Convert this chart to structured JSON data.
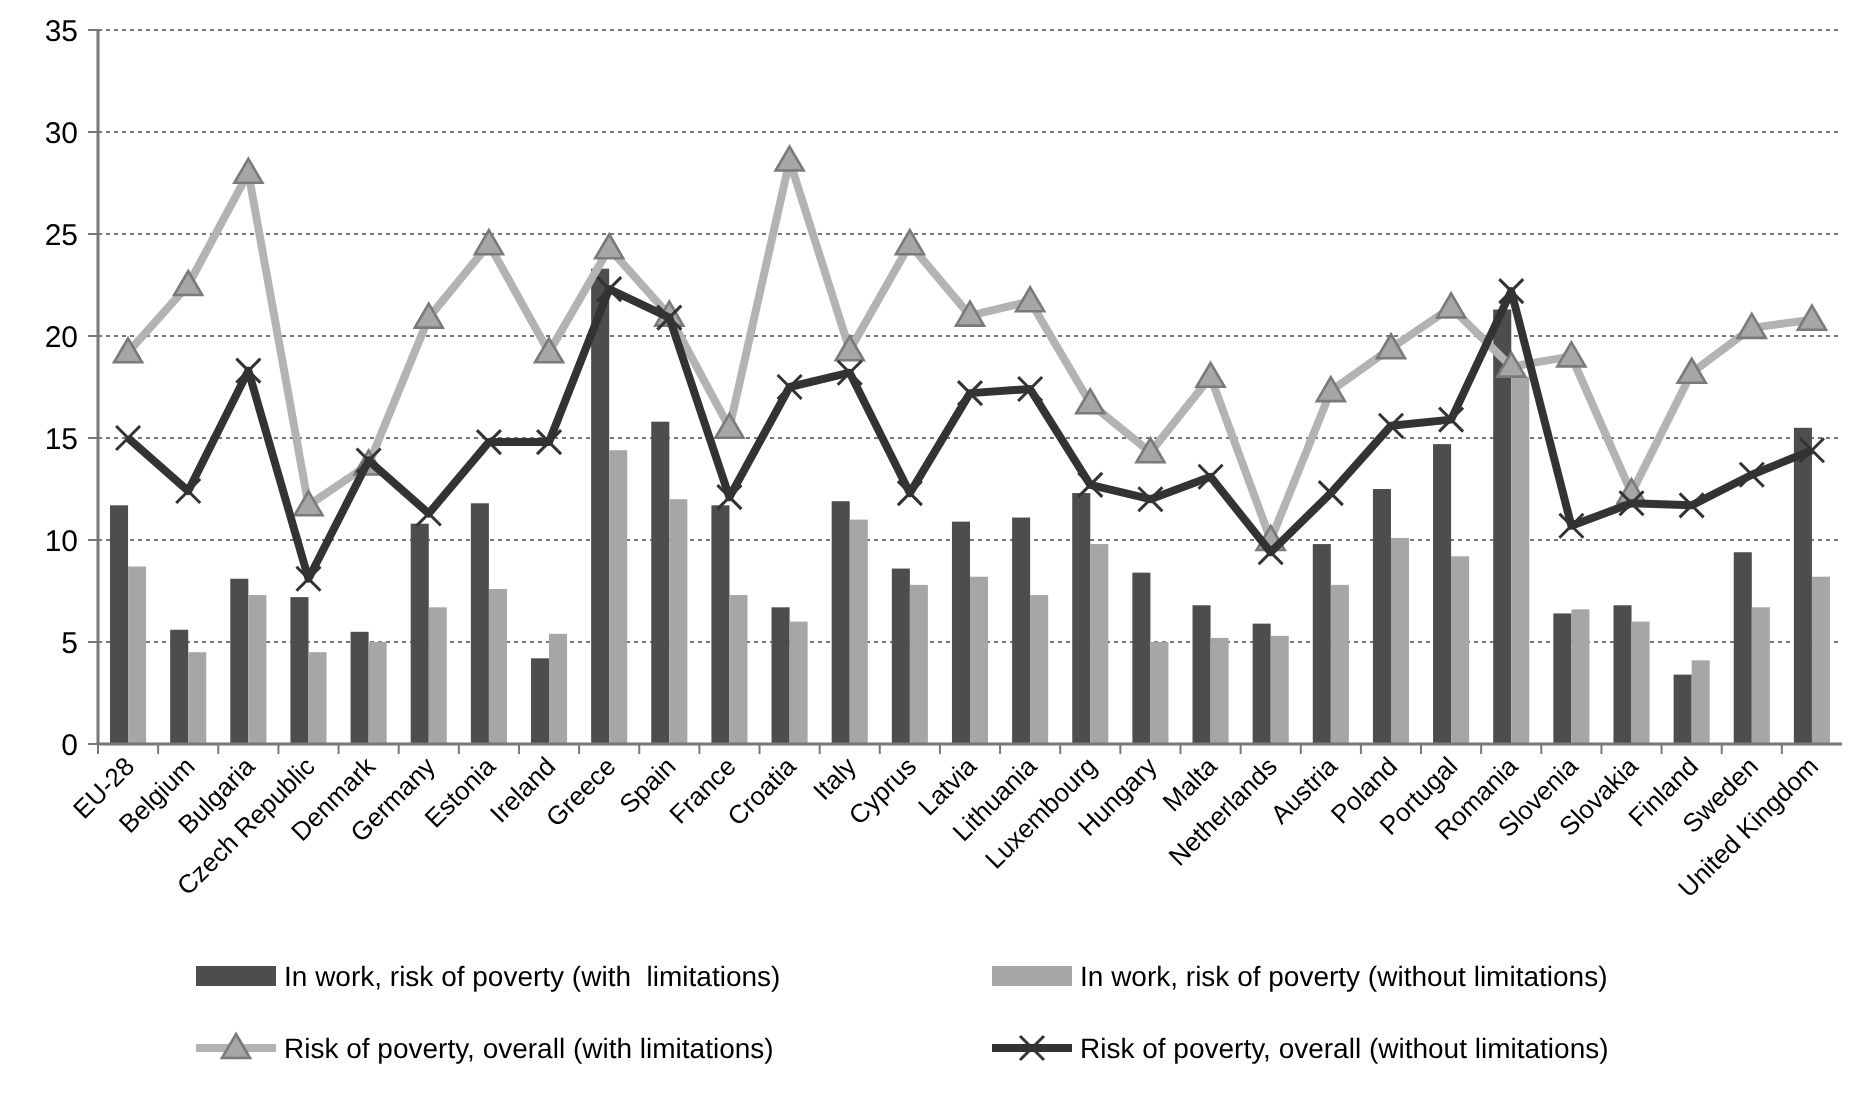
{
  "chart_data": {
    "type": "bar",
    "categories": [
      "EU-28",
      "Belgium",
      "Bulgaria",
      "Czech Republic",
      "Denmark",
      "Germany",
      "Estonia",
      "Ireland",
      "Greece",
      "Spain",
      "France",
      "Croatia",
      "Italy",
      "Cyprus",
      "Latvia",
      "Lithuania",
      "Luxembourg",
      "Hungary",
      "Malta",
      "Netherlands",
      "Austria",
      "Poland",
      "Portugal",
      "Romania",
      "Slovenia",
      "Slovakia",
      "Finland",
      "Sweden",
      "United Kingdom"
    ],
    "series": [
      {
        "name": "In work, risk of poverty (with  limitations)",
        "color": "#4d4d4d",
        "values": [
          11.7,
          5.6,
          8.1,
          7.2,
          5.5,
          10.8,
          11.8,
          4.2,
          23.3,
          15.8,
          11.7,
          6.7,
          11.9,
          8.6,
          10.9,
          11.1,
          12.3,
          8.4,
          6.8,
          5.9,
          9.8,
          12.5,
          14.7,
          21.3,
          6.4,
          6.8,
          3.4,
          9.4,
          15.5
        ]
      },
      {
        "name": "In work, risk of poverty (without limitations)",
        "color": "#a6a6a6",
        "values": [
          8.7,
          4.5,
          7.3,
          4.5,
          5.0,
          6.7,
          7.6,
          5.4,
          14.4,
          12.0,
          7.3,
          6.0,
          11.0,
          7.8,
          8.2,
          7.3,
          9.8,
          5.0,
          5.2,
          5.3,
          7.8,
          10.1,
          9.2,
          18.0,
          6.6,
          6.0,
          4.1,
          6.7,
          8.2
        ]
      },
      {
        "name": "Risk of poverty, overall (with limitations)",
        "type": "line",
        "marker": "triangle",
        "color": "#b3b3b3",
        "values": [
          19.2,
          22.5,
          28.0,
          11.7,
          13.7,
          20.9,
          24.5,
          19.2,
          24.3,
          21.0,
          15.5,
          28.6,
          19.3,
          24.5,
          21.0,
          21.7,
          16.7,
          14.3,
          18.0,
          10.0,
          17.3,
          19.4,
          21.4,
          18.5,
          19.0,
          12.3,
          18.2,
          20.4,
          20.8
        ]
      },
      {
        "name": "Risk of poverty, overall (without limitations)",
        "type": "line",
        "marker": "cross",
        "color": "#333333",
        "values": [
          15.0,
          12.4,
          18.3,
          8.1,
          13.9,
          11.3,
          14.8,
          14.8,
          22.3,
          20.9,
          12.1,
          17.5,
          18.2,
          12.3,
          17.2,
          17.4,
          12.7,
          12.0,
          13.1,
          9.4,
          12.3,
          15.6,
          15.9,
          22.2,
          10.7,
          11.8,
          11.7,
          13.2,
          14.4
        ]
      }
    ],
    "ylim": [
      0,
      35
    ],
    "yticks": [
      0,
      5,
      10,
      15,
      20,
      25,
      30,
      35
    ],
    "grid": "y",
    "legend": "bottom"
  }
}
